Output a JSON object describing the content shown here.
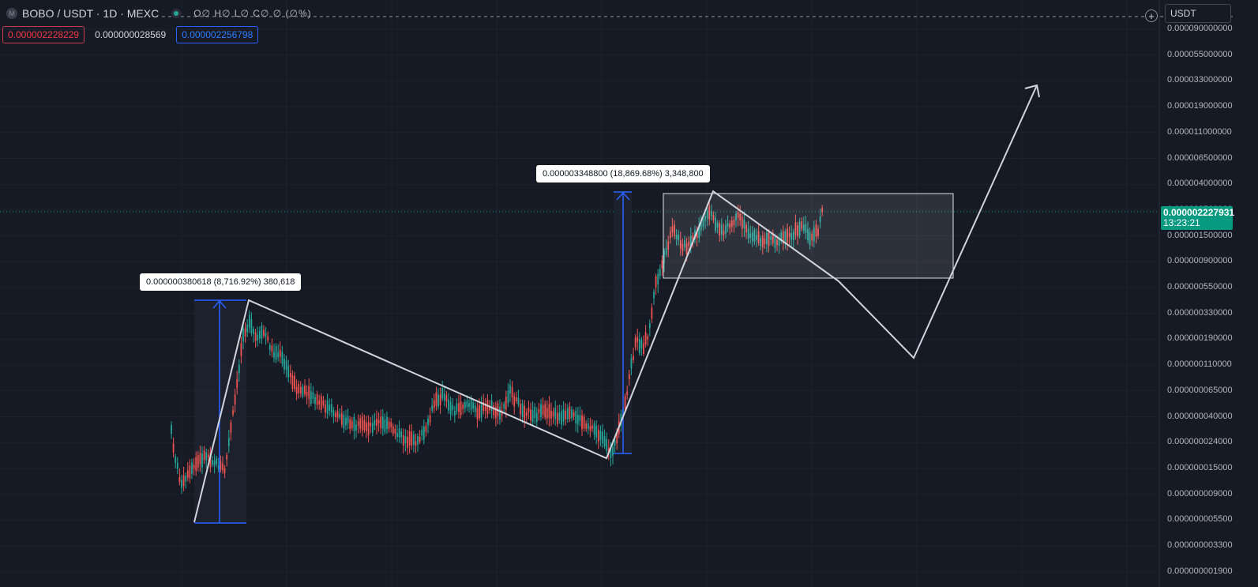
{
  "header": {
    "logo_text": "M",
    "symbol_title": "BOBO / USDT · 1D · MEXC",
    "ohlc": "O∅ H∅ L∅ C∅ ∅ (∅%)",
    "sell_price": "0.000002228229",
    "spread": "0.000000028569",
    "buy_price": "0.000002256798"
  },
  "currency_selector": {
    "value": "USDT"
  },
  "plus_button": {
    "label": "+"
  },
  "price_axis": {
    "labels": [
      "0.000090000000",
      "0.000055000000",
      "0.000033000000",
      "0.000019000000",
      "0.000011000000",
      "0.000006500000",
      "0.000004000000",
      "0.000002500000",
      "0.000001500000",
      "0.000000900000",
      "0.000000550000",
      "0.000000330000",
      "0.000000190000",
      "0.000000110000",
      "0.000000065000",
      "0.000000040000",
      "0.000000024000",
      "0.000000015000",
      "0.000000009000",
      "0.000000005500",
      "0.000000003300",
      "0.000000001900"
    ],
    "scale": "log"
  },
  "last_price": {
    "value": "0.000002227931",
    "countdown": "13:23:21"
  },
  "measurements": [
    {
      "text": "0.000000380618 (8,716.92%) 380,618"
    },
    {
      "text": "0.000003348800 (18,869.68%) 3,348,800"
    }
  ],
  "colors": {
    "up": "#26a69a",
    "down": "#ef5350",
    "measure": "#2962ff",
    "drawing": "#d1d4dc",
    "background": "#161a25"
  }
}
